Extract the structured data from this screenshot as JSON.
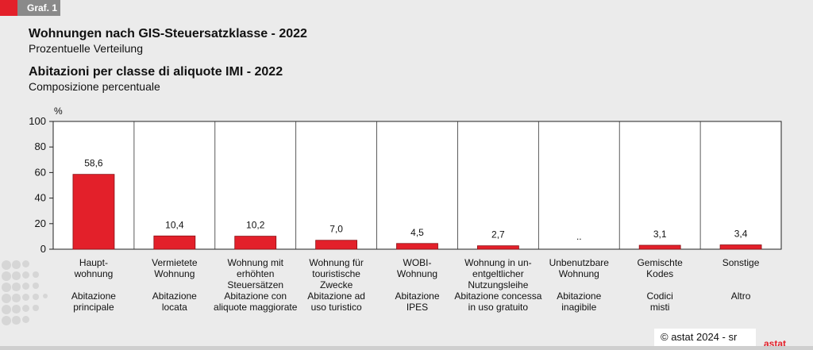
{
  "badge": "Graf. 1",
  "title_de": "Wohnungen nach GIS-Steuersatzklasse - 2022",
  "subtitle_de": "Prozentuelle Verteilung",
  "title_it": "Abitazioni per classe di aliquote IMI - 2022",
  "subtitle_it": "Composizione percentuale",
  "footer": "© astat 2024 - sr",
  "logo": "astat",
  "chart_data": {
    "type": "bar",
    "ylabel": "%",
    "ylim": [
      0,
      100
    ],
    "yticks": [
      0,
      20,
      40,
      60,
      80,
      100
    ],
    "grid": false,
    "bar_color": "#e3202a",
    "categories_de": [
      "Haupt-\nwohnung",
      "Vermietete\nWohnung",
      "Wohnung mit\nerhöhten\nSteuersätzen",
      "Wohnung für\ntouristische\nZwecke",
      "WOBI-\nWohnung",
      "Wohnung in un-\nentgeltlicher\nNutzungsleihe",
      "Unbenutzbare\nWohnung",
      "Gemischte\nKodes",
      "Sonstige"
    ],
    "categories_it": [
      "Abitazione\nprincipale",
      "Abitazione\nlocata",
      "Abitazione con\naliquote maggiorate",
      "Abitazione ad\nuso turistico",
      "Abitazione\nIPES",
      "Abitazione concessa\nin uso gratuito",
      "Abitazione\ninagibile",
      "Codici\nmisti",
      "Altro"
    ],
    "values": [
      58.6,
      10.4,
      10.2,
      7.0,
      4.5,
      2.7,
      null,
      3.1,
      3.4
    ],
    "value_labels": [
      "58,6",
      "10,4",
      "10,2",
      "7,0",
      "4,5",
      "2,7",
      "..",
      "3,1",
      "3,4"
    ]
  }
}
